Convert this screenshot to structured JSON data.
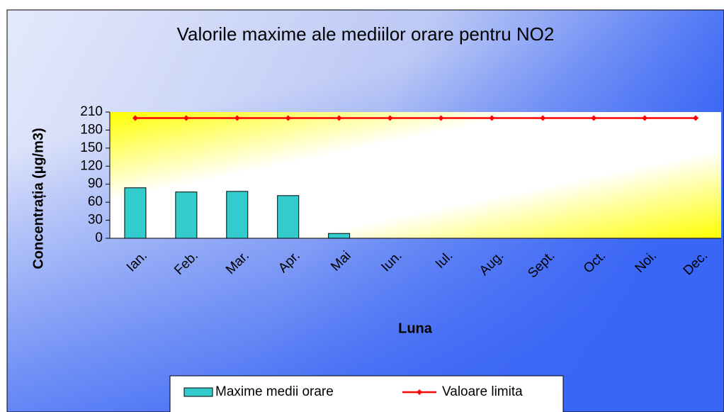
{
  "chart_data": {
    "type": "bar",
    "title": "Valorile maxime ale mediilor orare pentru NO2",
    "x_label": "Luna",
    "y_label": "Concentrația (µg/m3)",
    "categories": [
      "Ian.",
      "Feb.",
      "Mar.",
      "Apr.",
      "Mai",
      "Iun.",
      "Iul.",
      "Aug.",
      "Sept.",
      "Oct.",
      "Noi.",
      "Dec."
    ],
    "series": [
      {
        "name": "Maxime medii orare",
        "type": "bar",
        "color": "#33cccc",
        "values": [
          84,
          77,
          78,
          71,
          8,
          null,
          null,
          null,
          null,
          null,
          null,
          null
        ]
      },
      {
        "name": "Valoare limita",
        "type": "line",
        "color": "#ff0000",
        "values": [
          200,
          200,
          200,
          200,
          200,
          200,
          200,
          200,
          200,
          200,
          200,
          200
        ]
      }
    ],
    "ylim": [
      0,
      210
    ],
    "yticks": [
      0,
      30,
      60,
      90,
      120,
      150,
      180,
      210
    ],
    "legend": "bottom"
  }
}
